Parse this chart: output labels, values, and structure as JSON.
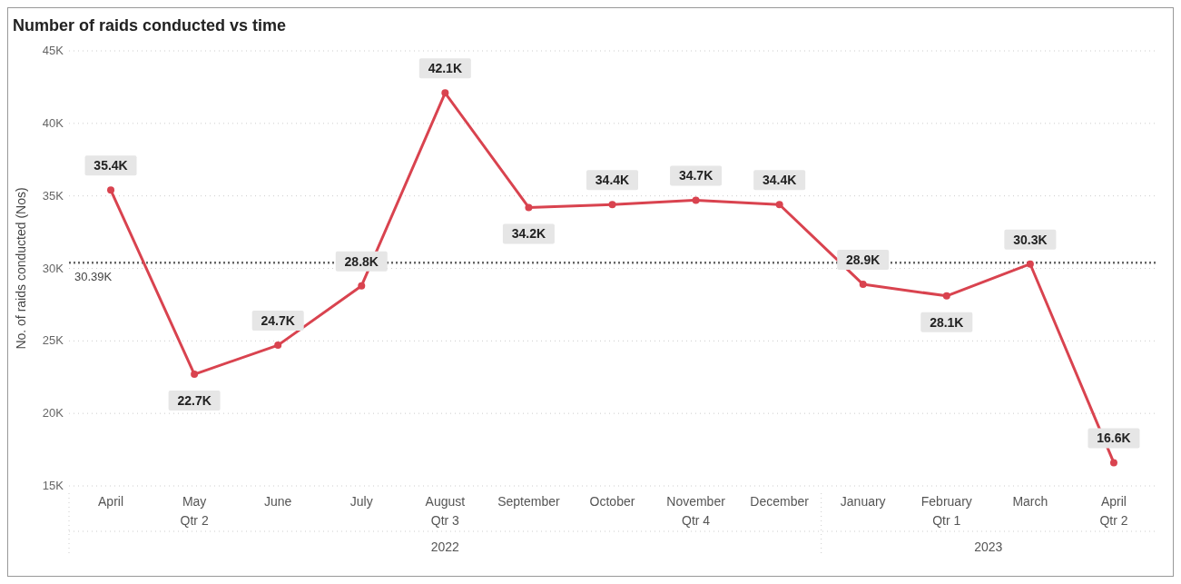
{
  "chart_data": {
    "type": "line",
    "title": "Number of raids conducted vs time",
    "ylabel": "No. of raids conducted (Nos)",
    "categories": [
      "April",
      "May\nQtr 2",
      "June",
      "July",
      "August\nQtr 3",
      "September",
      "October",
      "November\nQtr 4",
      "December",
      "January",
      "February\nQtr 1",
      "March",
      "April\nQtr 2"
    ],
    "series": [
      {
        "color": "#d9434f",
        "values": [
          35400,
          22700,
          24700,
          28800,
          42100,
          34200,
          34400,
          34700,
          34400,
          28900,
          28100,
          30300,
          16600
        ],
        "value_labels": [
          "35.4K",
          "22.7K",
          "24.7K",
          "28.8K",
          "42.1K",
          "34.2K",
          "34.4K",
          "34.7K",
          "34.4K",
          "28.9K",
          "28.1K",
          "30.3K",
          "16.6K"
        ]
      }
    ],
    "ylim": [
      15000,
      45000
    ],
    "yticks": [
      {
        "value": 15000,
        "label": "15K"
      },
      {
        "value": 20000,
        "label": "20K"
      },
      {
        "value": 25000,
        "label": "25K"
      },
      {
        "value": 30000,
        "label": "30K"
      },
      {
        "value": 35000,
        "label": "35K"
      },
      {
        "value": 40000,
        "label": "40K"
      },
      {
        "value": 45000,
        "label": "45K"
      }
    ],
    "grid": "y",
    "marker": "circle",
    "line_style": "solid",
    "ref_lines": [
      {
        "axis": "y",
        "value": 30390,
        "label": "30.39K",
        "color": "#666666",
        "line_style": "dotted"
      }
    ],
    "annotations": [
      "2022",
      "2023"
    ]
  }
}
